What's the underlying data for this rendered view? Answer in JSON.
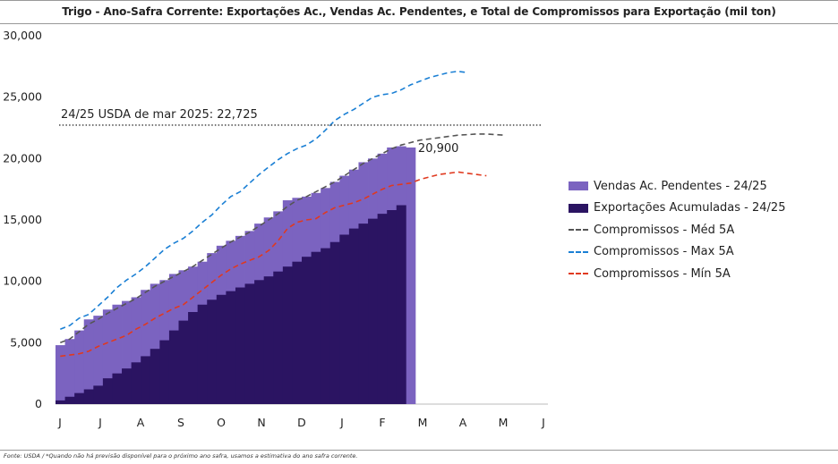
{
  "title": "Trigo - Ano-Safra Corrente: Exportações Ac., Vendas Ac. Pendentes, e Total de Compromissos para Exportação (mil ton)",
  "source": "Fonte: USDA / *Quando não há previsão disponível para o próximo ano safra, usamos a estimativa do ano safra corrente.",
  "chart_data": {
    "type": "area",
    "ylim": [
      0,
      30000
    ],
    "y_ticks": [
      "0",
      "5,000",
      "10,000",
      "15,000",
      "20,000",
      "25,000",
      "30,000"
    ],
    "x_ticks": [
      "J",
      "J",
      "A",
      "S",
      "O",
      "N",
      "D",
      "J",
      "F",
      "M",
      "A",
      "M",
      "J"
    ],
    "reference_line": {
      "label": "24/25 USDA de mar 2025: 22,725",
      "value": 22725
    },
    "end_label": "20,900",
    "week_index_range": [
      0,
      52
    ],
    "series": [
      {
        "name": "Vendas Ac. Pendentes - 24/25",
        "kind": "bar_stack",
        "color": "#7b63c0",
        "values": [
          4800,
          5300,
          6000,
          6900,
          7200,
          7700,
          8100,
          8400,
          8700,
          9300,
          9800,
          10100,
          10600,
          10900,
          11200,
          11600,
          12300,
          12900,
          13300,
          13700,
          14100,
          14700,
          15200,
          15700,
          16600,
          16800,
          16900,
          17200,
          17600,
          18100,
          18600,
          19100,
          19700,
          20000,
          20400,
          20900,
          21000,
          20900
        ]
      },
      {
        "name": "Exportações Acumuladas - 24/25",
        "kind": "bar",
        "color": "#2b1462",
        "values": [
          300,
          600,
          900,
          1200,
          1500,
          2100,
          2500,
          2900,
          3400,
          3900,
          4500,
          5200,
          6000,
          6800,
          7500,
          8100,
          8500,
          8900,
          9200,
          9500,
          9800,
          10100,
          10400,
          10800,
          11200,
          11600,
          12000,
          12400,
          12700,
          13200,
          13800,
          14300,
          14700,
          15100,
          15500,
          15800,
          16200
        ]
      },
      {
        "name": "Compromissos - Méd 5A",
        "kind": "line",
        "color": "#555555",
        "values": [
          5000,
          5300,
          5900,
          6500,
          6900,
          7400,
          7800,
          8200,
          8600,
          9100,
          9600,
          10000,
          10400,
          10800,
          11200,
          11700,
          12200,
          12700,
          13200,
          13600,
          14000,
          14500,
          15000,
          15500,
          16100,
          16600,
          16900,
          17300,
          17700,
          18100,
          18600,
          19100,
          19600,
          20000,
          20400,
          20800,
          21100,
          21300,
          21500,
          21600,
          21700,
          21800,
          21900,
          21950,
          22000,
          22000,
          21950,
          21900
        ]
      },
      {
        "name": "Compromissos - Max 5A",
        "kind": "line",
        "color": "#1a7fd4",
        "values": [
          6100,
          6400,
          7000,
          7300,
          8000,
          8700,
          9500,
          10100,
          10600,
          11200,
          11900,
          12600,
          13100,
          13500,
          14100,
          14800,
          15400,
          16200,
          16900,
          17300,
          18000,
          18700,
          19300,
          19900,
          20400,
          20800,
          21100,
          21600,
          22300,
          23100,
          23600,
          24000,
          24500,
          25000,
          25200,
          25300,
          25600,
          26000,
          26300,
          26600,
          26800,
          27000,
          27100,
          27000
        ]
      },
      {
        "name": "Compromissos - Mín 5A",
        "kind": "line",
        "color": "#e0391f",
        "values": [
          3900,
          4000,
          4100,
          4300,
          4700,
          5000,
          5300,
          5600,
          6100,
          6500,
          7000,
          7400,
          7800,
          8100,
          8700,
          9300,
          9900,
          10500,
          11000,
          11400,
          11700,
          12000,
          12500,
          13300,
          14300,
          14800,
          15000,
          15100,
          15600,
          16000,
          16200,
          16400,
          16700,
          17100,
          17500,
          17800,
          17900,
          18000,
          18300,
          18500,
          18700,
          18800,
          18900,
          18800,
          18700,
          18600
        ]
      }
    ],
    "legend_position": "right"
  }
}
